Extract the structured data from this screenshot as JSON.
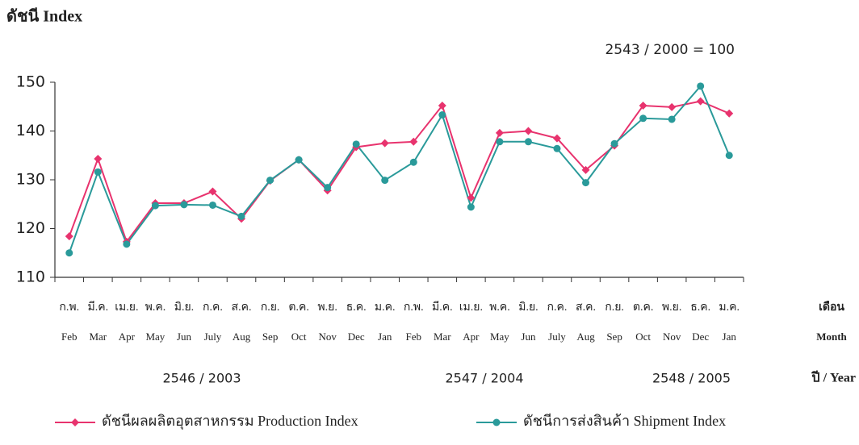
{
  "chart_data": {
    "type": "line",
    "ylabel": "ดัชนี  Index",
    "note": "2543 / 2000 = 100",
    "categories_th": [
      "ก.พ.",
      "มี.ค.",
      "เม.ย.",
      "พ.ค.",
      "มิ.ย.",
      "ก.ค.",
      "ส.ค.",
      "ก.ย.",
      "ต.ค.",
      "พ.ย.",
      "ธ.ค.",
      "ม.ค.",
      "ก.พ.",
      "มี.ค.",
      "เม.ย.",
      "พ.ค.",
      "มิ.ย.",
      "ก.ค.",
      "ส.ค.",
      "ก.ย.",
      "ต.ค.",
      "พ.ย.",
      "ธ.ค.",
      "ม.ค."
    ],
    "categories": [
      "Feb",
      "Mar",
      "Apr",
      "May",
      "Jun",
      "July",
      "Aug",
      "Sep",
      "Oct",
      "Nov",
      "Dec",
      "Jan",
      "Feb",
      "Mar",
      "Apr",
      "May",
      "Jun",
      "July",
      "Aug",
      "Sep",
      "Oct",
      "Nov",
      "Dec",
      "Jan"
    ],
    "x_label_th": "เดือน",
    "x_label": "Month",
    "x_groups": [
      "2546 / 2003",
      "2547 / 2004",
      "2548 / 2005"
    ],
    "group_label": "ปี / Year",
    "ylim": [
      110,
      150
    ],
    "yticks": [
      110,
      120,
      130,
      140,
      150
    ],
    "series": [
      {
        "name": "ดัชนีผลผลิตอุตสาหกรรม  Production Index",
        "color": "#e8336e",
        "marker": "diamond",
        "values": [
          118.4,
          134.3,
          117.3,
          125.2,
          125.2,
          127.6,
          122,
          129.8,
          134.1,
          127.8,
          136.7,
          137.5,
          137.8,
          145.2,
          126.3,
          139.6,
          140,
          138.5,
          132,
          137,
          145.2,
          144.9,
          146.1,
          143.6
        ]
      },
      {
        "name": "ดัชนีการส่งสินค้า  Shipment Index",
        "color": "#2a9a9a",
        "marker": "circle",
        "values": [
          115,
          131.6,
          116.8,
          124.7,
          124.9,
          124.8,
          122.5,
          129.9,
          134.1,
          128.4,
          137.3,
          129.9,
          133.6,
          143.3,
          124.4,
          137.8,
          137.8,
          136.4,
          129.4,
          137.4,
          142.6,
          142.4,
          149.2,
          135
        ]
      }
    ]
  }
}
